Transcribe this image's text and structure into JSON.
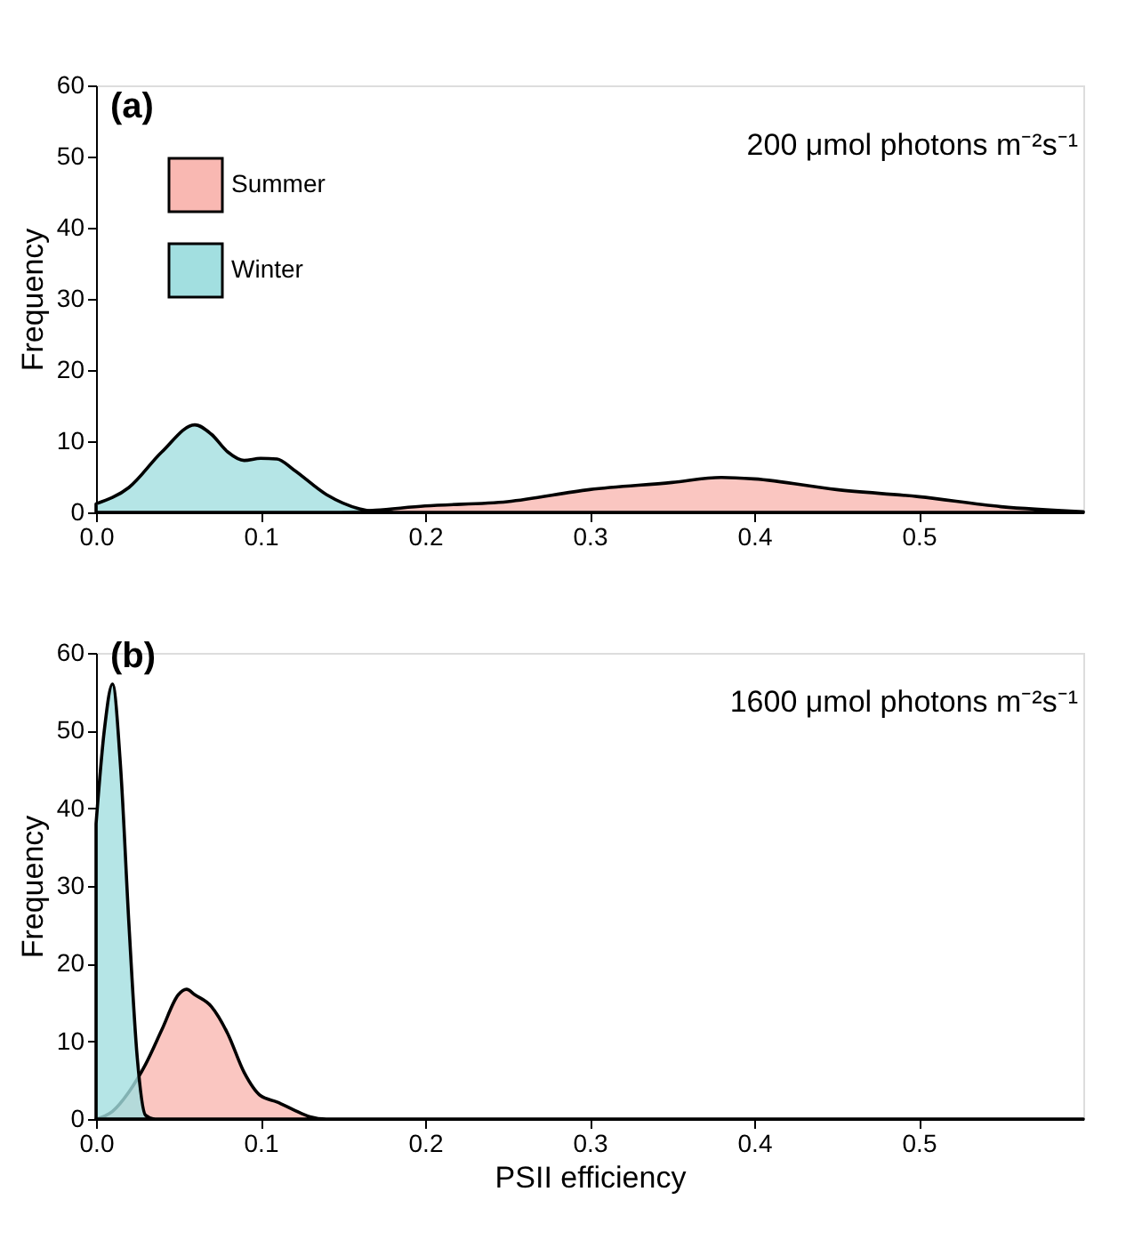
{
  "chart_data": [
    {
      "type": "area",
      "annotations": [
        "(a)",
        "200 μmol photons m⁻²s⁻¹"
      ],
      "ylabel": "Frequency",
      "legend": "top left",
      "xlim": [
        0,
        0.6
      ],
      "xticks": [
        {
          "value": 0,
          "label": "0.0"
        },
        0.1,
        0.2,
        0.3,
        0.4,
        0.5
      ],
      "ylim": [
        0,
        60
      ],
      "yticks": [
        0,
        10,
        20,
        30,
        40,
        50,
        60
      ],
      "series": [
        {
          "name": "Summer",
          "color": "#f9b8b2",
          "x": [
            0.15,
            0.17,
            0.2,
            0.25,
            0.3,
            0.35,
            0.38,
            0.4,
            0.45,
            0.5,
            0.55,
            0.6
          ],
          "values": [
            0,
            0.3,
            0.9,
            1.5,
            3.2,
            4.2,
            4.9,
            4.7,
            3.2,
            2.2,
            0.8,
            0.1
          ]
        },
        {
          "name": "Winter",
          "color": "#a2dfe0",
          "x": [
            0,
            0.02,
            0.04,
            0.06,
            0.07,
            0.08,
            0.09,
            0.1,
            0.11,
            0.12,
            0.14,
            0.16,
            0.17,
            0.18
          ],
          "values": [
            1.2,
            3.5,
            8.5,
            12.3,
            11,
            8.5,
            7.3,
            7.6,
            7.5,
            6,
            2.5,
            0.5,
            0.1,
            0
          ]
        }
      ]
    },
    {
      "type": "area",
      "annotations": [
        "(b)",
        "1600 μmol photons  m⁻²s⁻¹"
      ],
      "xlabel": "PSII efficiency",
      "ylabel": "Frequency",
      "xlim": [
        0,
        0.6
      ],
      "xticks": [
        {
          "value": 0,
          "label": "0.0"
        },
        0.1,
        0.2,
        0.3,
        0.4,
        0.5
      ],
      "ylim": [
        0,
        60
      ],
      "yticks": [
        0,
        10,
        20,
        30,
        40,
        50,
        60
      ],
      "series": [
        {
          "color": "#f9b8b2",
          "x": [
            0,
            0.01,
            0.02,
            0.03,
            0.04,
            0.05,
            0.055,
            0.06,
            0.07,
            0.08,
            0.09,
            0.1,
            0.11,
            0.12,
            0.13,
            0.14,
            0.6
          ],
          "values": [
            0,
            1,
            3.5,
            7,
            11.5,
            16,
            16.7,
            16,
            14.5,
            11,
            6,
            3,
            2.2,
            1.2,
            0.3,
            0,
            0
          ]
        },
        {
          "color": "#a2dfe0",
          "x": [
            0,
            0.005,
            0.01,
            0.015,
            0.02,
            0.025,
            0.03,
            0.035
          ],
          "values": [
            38,
            50,
            56,
            45,
            25,
            8,
            0.5,
            0
          ]
        }
      ]
    }
  ]
}
